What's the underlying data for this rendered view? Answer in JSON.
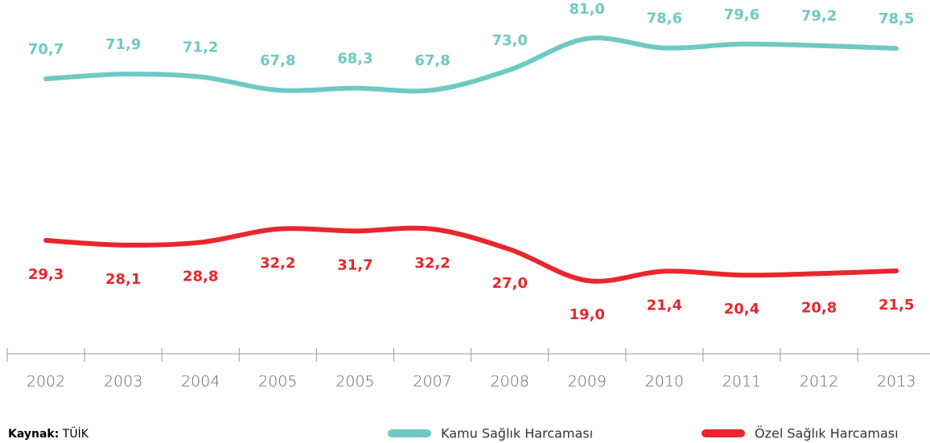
{
  "chart_data": {
    "type": "line",
    "categories": [
      "2002",
      "2003",
      "2004",
      "2005",
      "2005",
      "2007",
      "2008",
      "2009",
      "2010",
      "2011",
      "2012",
      "2013"
    ],
    "series": [
      {
        "name": "Kamu Sağlık Harcaması",
        "color": "#6ec9c2",
        "values": [
          70.7,
          71.9,
          71.2,
          67.8,
          68.3,
          67.8,
          73.0,
          81.0,
          78.6,
          79.6,
          79.2,
          78.5
        ],
        "value_labels": [
          "70,7",
          "71,9",
          "71,2",
          "67,8",
          "68,3",
          "67,8",
          "73,0",
          "81,0",
          "78,6",
          "79,6",
          "79,2",
          "78,5"
        ]
      },
      {
        "name": "Özel Sağlık Harcaması",
        "color": "#e8262c",
        "values": [
          29.3,
          28.1,
          28.8,
          32.2,
          31.7,
          32.2,
          27.0,
          19.0,
          21.4,
          20.4,
          20.8,
          21.5
        ],
        "value_labels": [
          "29,3",
          "28,1",
          "28,8",
          "32,2",
          "31,7",
          "32,2",
          "27,0",
          "19,0",
          "21,4",
          "20,4",
          "20,8",
          "21,5"
        ]
      }
    ],
    "source_label": "Kaynak:",
    "source": "TÜİK"
  }
}
